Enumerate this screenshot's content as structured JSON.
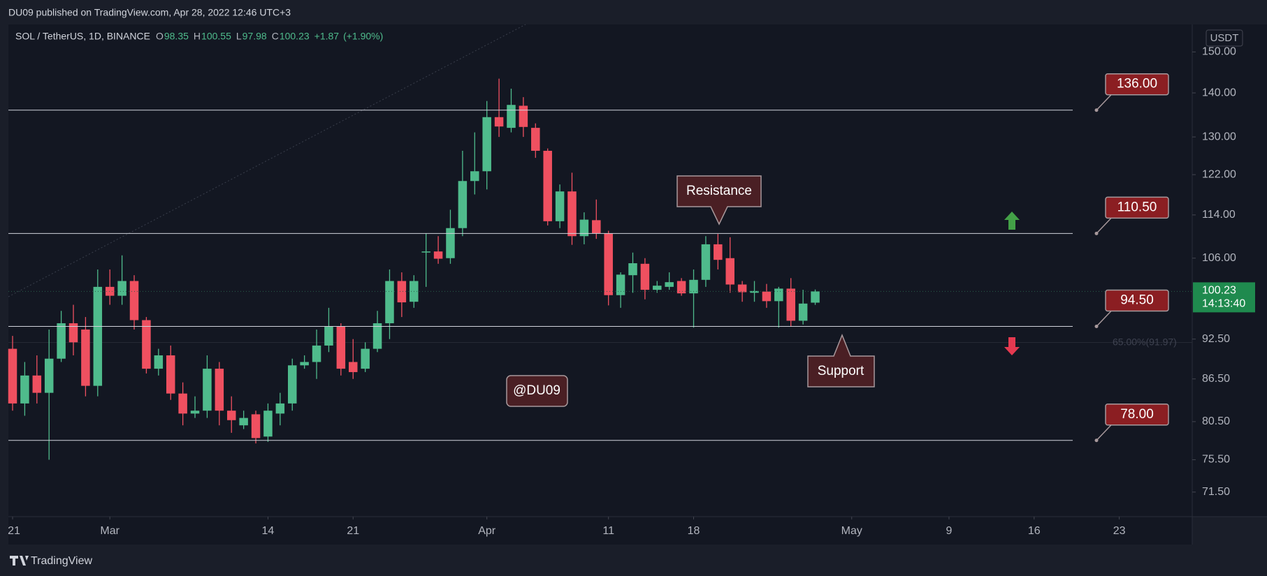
{
  "header": {
    "published": "DU09 published on TradingView.com, Apr 28, 2022 12:46 UTC+3"
  },
  "footer": {
    "brand": "TradingView"
  },
  "chart_data": {
    "type": "candlestick",
    "symbol": "SOL / TetherUS, 1D, BINANCE",
    "legend_items": [
      {
        "label": "O",
        "value": 98.35
      },
      {
        "label": "H",
        "value": 100.55
      },
      {
        "label": "L",
        "value": 97.98
      },
      {
        "label": "C",
        "value": 100.23
      }
    ],
    "change": "+1.87",
    "change_pct": "(+1.90%)",
    "currency": "USDT",
    "up_color": "#4fbb8c",
    "down_color": "#ef5060",
    "log_scale": true,
    "grid": false,
    "x": [
      "2022-02-21",
      "2022-02-22",
      "2022-02-23",
      "2022-02-24",
      "2022-02-25",
      "2022-02-26",
      "2022-02-27",
      "2022-02-28",
      "2022-03-01",
      "2022-03-02",
      "2022-03-03",
      "2022-03-04",
      "2022-03-05",
      "2022-03-06",
      "2022-03-07",
      "2022-03-08",
      "2022-03-09",
      "2022-03-10",
      "2022-03-11",
      "2022-03-12",
      "2022-03-13",
      "2022-03-14",
      "2022-03-15",
      "2022-03-16",
      "2022-03-17",
      "2022-03-18",
      "2022-03-19",
      "2022-03-20",
      "2022-03-21",
      "2022-03-22",
      "2022-03-23",
      "2022-03-24",
      "2022-03-25",
      "2022-03-26",
      "2022-03-27",
      "2022-03-28",
      "2022-03-29",
      "2022-03-30",
      "2022-03-31",
      "2022-04-01",
      "2022-04-02",
      "2022-04-03",
      "2022-04-04",
      "2022-04-05",
      "2022-04-06",
      "2022-04-07",
      "2022-04-08",
      "2022-04-09",
      "2022-04-10",
      "2022-04-11",
      "2022-04-12",
      "2022-04-13",
      "2022-04-14",
      "2022-04-15",
      "2022-04-16",
      "2022-04-17",
      "2022-04-18",
      "2022-04-19",
      "2022-04-20",
      "2022-04-21",
      "2022-04-22",
      "2022-04-23",
      "2022-04-24",
      "2022-04-25",
      "2022-04-26",
      "2022-04-27",
      "2022-04-28"
    ],
    "open": [
      91,
      83,
      87,
      84.5,
      89.5,
      95,
      94,
      85.5,
      101,
      99.5,
      102,
      95.5,
      88,
      90,
      84.4,
      81.6,
      82,
      88,
      82,
      80,
      81.5,
      78.5,
      81.6,
      83,
      88.5,
      89,
      91.5,
      94.5,
      89,
      88,
      91,
      95,
      102,
      98.5,
      107.2,
      107.2,
      106,
      111.5,
      120.7,
      122.7,
      134.4,
      132,
      137,
      132,
      127,
      112.8,
      118.6,
      110,
      113,
      110.5,
      99.6,
      103,
      105,
      100.5,
      101,
      102,
      99.9,
      102.2,
      108.5,
      106,
      101.4,
      100,
      100.2,
      98.6,
      100.7,
      95.4,
      98.35
    ],
    "high": [
      93,
      89,
      90,
      94,
      97,
      98,
      96,
      104,
      104,
      106.5,
      103,
      96,
      91,
      91.5,
      86,
      84,
      90,
      89,
      84,
      82,
      82,
      83,
      84.5,
      89.5,
      90,
      94,
      97.5,
      95,
      92.5,
      92,
      97,
      104,
      103.5,
      103,
      110.5,
      110,
      115,
      127,
      131,
      138.1,
      143.4,
      141,
      139,
      133,
      127.5,
      120,
      122.4,
      114.5,
      117,
      111,
      103.5,
      107,
      106,
      102,
      103.5,
      102.5,
      104,
      110,
      110.4,
      109.8,
      102,
      102,
      101.5,
      101,
      102.5,
      100.5,
      100.55
    ],
    "low": [
      82,
      81.3,
      83,
      75.5,
      89,
      90,
      84,
      84,
      98,
      98,
      94,
      87.3,
      87,
      83.5,
      80,
      81,
      81,
      80,
      79,
      79.5,
      77.6,
      77.8,
      80,
      82,
      88,
      86.5,
      90.5,
      87,
      86.5,
      87.5,
      90.5,
      92.5,
      96,
      97.5,
      101,
      105,
      105,
      110,
      118,
      119,
      130,
      131,
      130,
      125.5,
      112,
      111.5,
      108.4,
      108.5,
      109.5,
      97.9,
      97.5,
      100,
      98.9,
      100,
      100.5,
      99.5,
      94.3,
      101,
      104,
      100,
      98.5,
      98.5,
      97.5,
      94.3,
      94.5,
      94.8,
      97.98
    ],
    "close": [
      83,
      87,
      84.5,
      89.5,
      95,
      92,
      85.5,
      101,
      99.5,
      102,
      95.5,
      88,
      90,
      84.4,
      81.6,
      82,
      88,
      82,
      80.7,
      81,
      78.3,
      82,
      83,
      88.5,
      89,
      91.5,
      94.5,
      88,
      87.5,
      91,
      95,
      102,
      98.4,
      102,
      107.2,
      105.9,
      111.5,
      120.7,
      122.7,
      134.4,
      132.3,
      137.2,
      132.2,
      127,
      112.8,
      118.6,
      110,
      113.1,
      110.5,
      99.6,
      103.1,
      105.1,
      100.5,
      101.2,
      101.8,
      99.9,
      102.2,
      108.5,
      105.7,
      101.4,
      100.1,
      100.3,
      98.6,
      100.7,
      95.4,
      98.2,
      100.23
    ],
    "xlim": [
      "2022-02-21",
      "2022-05-29"
    ],
    "xticks": [
      {
        "value": "2022-02-21",
        "label": "21"
      },
      {
        "value": "2022-03-01",
        "label": "Mar"
      },
      {
        "value": "2022-03-14",
        "label": "14"
      },
      {
        "value": "2022-03-21",
        "label": "21"
      },
      {
        "value": "2022-04-01",
        "label": "Apr"
      },
      {
        "value": "2022-04-11",
        "label": "11"
      },
      {
        "value": "2022-04-18",
        "label": "18"
      },
      {
        "value": "2022-05-01",
        "label": "May"
      },
      {
        "value": "2022-05-09",
        "label": "9"
      },
      {
        "value": "2022-05-16",
        "label": "16"
      },
      {
        "value": "2022-05-23",
        "label": "23"
      }
    ],
    "ylim": [
      68.6,
      157.1
    ],
    "yticks": [
      {
        "value": 150,
        "label": "150.00"
      },
      {
        "value": 140,
        "label": "140.00"
      },
      {
        "value": 130,
        "label": "130.00"
      },
      {
        "value": 122,
        "label": "122.00"
      },
      {
        "value": 114,
        "label": "114.00"
      },
      {
        "value": 106,
        "label": "106.00"
      },
      {
        "value": 92.5,
        "label": "92.50"
      },
      {
        "value": 86.5,
        "label": "86.50"
      },
      {
        "value": 80.5,
        "label": "80.50"
      },
      {
        "value": 75.5,
        "label": "75.50"
      },
      {
        "value": 71.5,
        "label": "71.50"
      }
    ],
    "last_price": {
      "value": 100.23,
      "label": "100.23",
      "countdown": "14:13:40"
    },
    "levels": [
      {
        "value": 136,
        "label": "136.00"
      },
      {
        "value": 110.5,
        "label": "110.50"
      },
      {
        "value": 94.5,
        "label": "94.50"
      },
      {
        "value": 78,
        "label": "78.00"
      }
    ],
    "fib_levels": [
      {
        "value": 91.97,
        "label": "65.00%(91.97)"
      }
    ],
    "annotations": {
      "resistance": "Resistance",
      "support": "Support",
      "author": "@DU09"
    }
  }
}
